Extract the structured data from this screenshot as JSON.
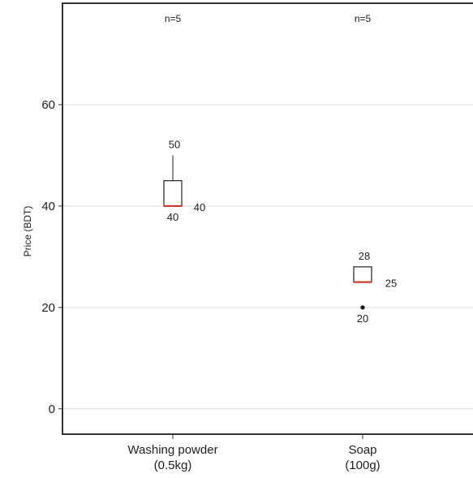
{
  "chart_data": {
    "type": "boxplot",
    "ylabel": "Price (BDT)",
    "xlabel": "",
    "ylim": [
      -5,
      80
    ],
    "yticks": [
      0,
      20,
      40,
      60
    ],
    "grid": true,
    "categories": [
      {
        "label_line1": "Washing powder",
        "label_line2": "(0.5kg)",
        "n_label": "n=5",
        "q1": 40,
        "median": 40,
        "q3": 45,
        "whisker_low": 40,
        "whisker_high": 50,
        "outliers": [],
        "label_max": "50",
        "label_median": "40",
        "label_min": "40"
      },
      {
        "label_line1": "Soap",
        "label_line2": "(100g)",
        "n_label": "n=5",
        "q1": 25,
        "median": 25,
        "q3": 28,
        "whisker_low": 25,
        "whisker_high": 28,
        "outliers": [
          20
        ],
        "label_max": "28",
        "label_median": "25",
        "label_min": "20"
      }
    ],
    "colors": {
      "median": "#cc2a1e",
      "box": "#222222",
      "grid": "#d9d9d9",
      "panel": "#333333"
    }
  }
}
